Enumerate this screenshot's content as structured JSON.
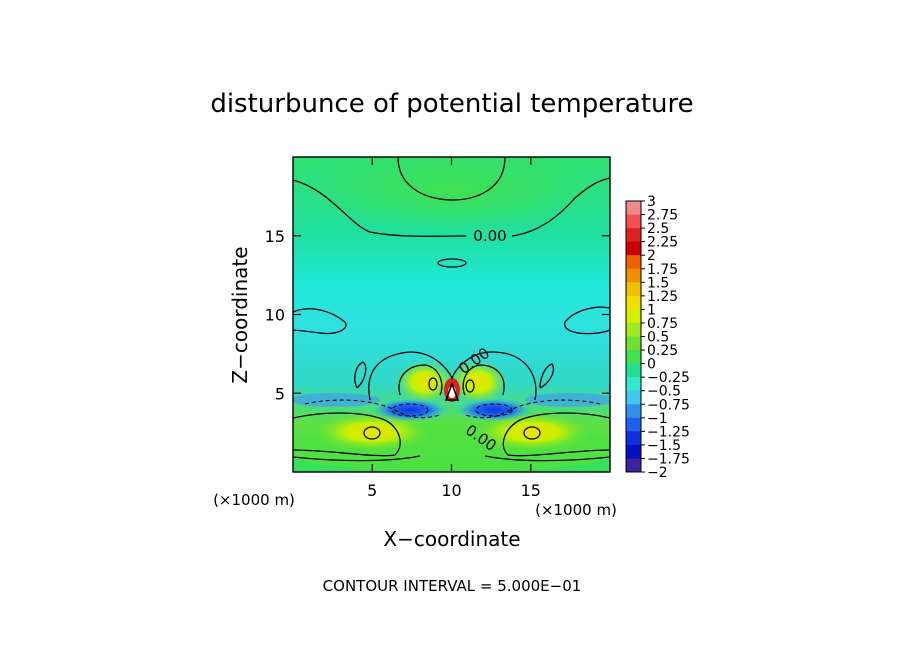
{
  "chart_data": {
    "type": "heatmap",
    "title": "disturbunce of potential temperature",
    "xlabel": "X−coordinate",
    "ylabel": "Z−coordinate",
    "x_unit_label": "(×1000 m)",
    "z_unit_label": "(×1000 m)",
    "footer": "CONTOUR INTERVAL = 5.000E−01",
    "xlim": [
      0,
      20
    ],
    "ylim": [
      0,
      20
    ],
    "x_ticks": [
      5,
      10,
      15
    ],
    "y_ticks": [
      5,
      10,
      15
    ],
    "contour_labels": [
      "0.00",
      "0.00",
      "0.00"
    ],
    "colorbar": {
      "ticks": [
        "3",
        "2.75",
        "2.5",
        "2.25",
        "2",
        "1.75",
        "1.5",
        "1.25",
        "1",
        "0.75",
        "0.5",
        "0.25",
        "0",
        "−0.25",
        "−0.5",
        "−0.75",
        "−1",
        "−1.25",
        "−1.5",
        "−1.75",
        "−2"
      ],
      "colors": [
        "#f08a8a",
        "#f05050",
        "#e02020",
        "#c80000",
        "#f06000",
        "#f09000",
        "#f0c000",
        "#f0e000",
        "#d0f000",
        "#a0e820",
        "#70e030",
        "#40e050",
        "#20e090",
        "#30e8d0",
        "#40c8f0",
        "#3090f0",
        "#2060f0",
        "#1030e0",
        "#0010c0",
        "#4020a0"
      ]
    }
  }
}
